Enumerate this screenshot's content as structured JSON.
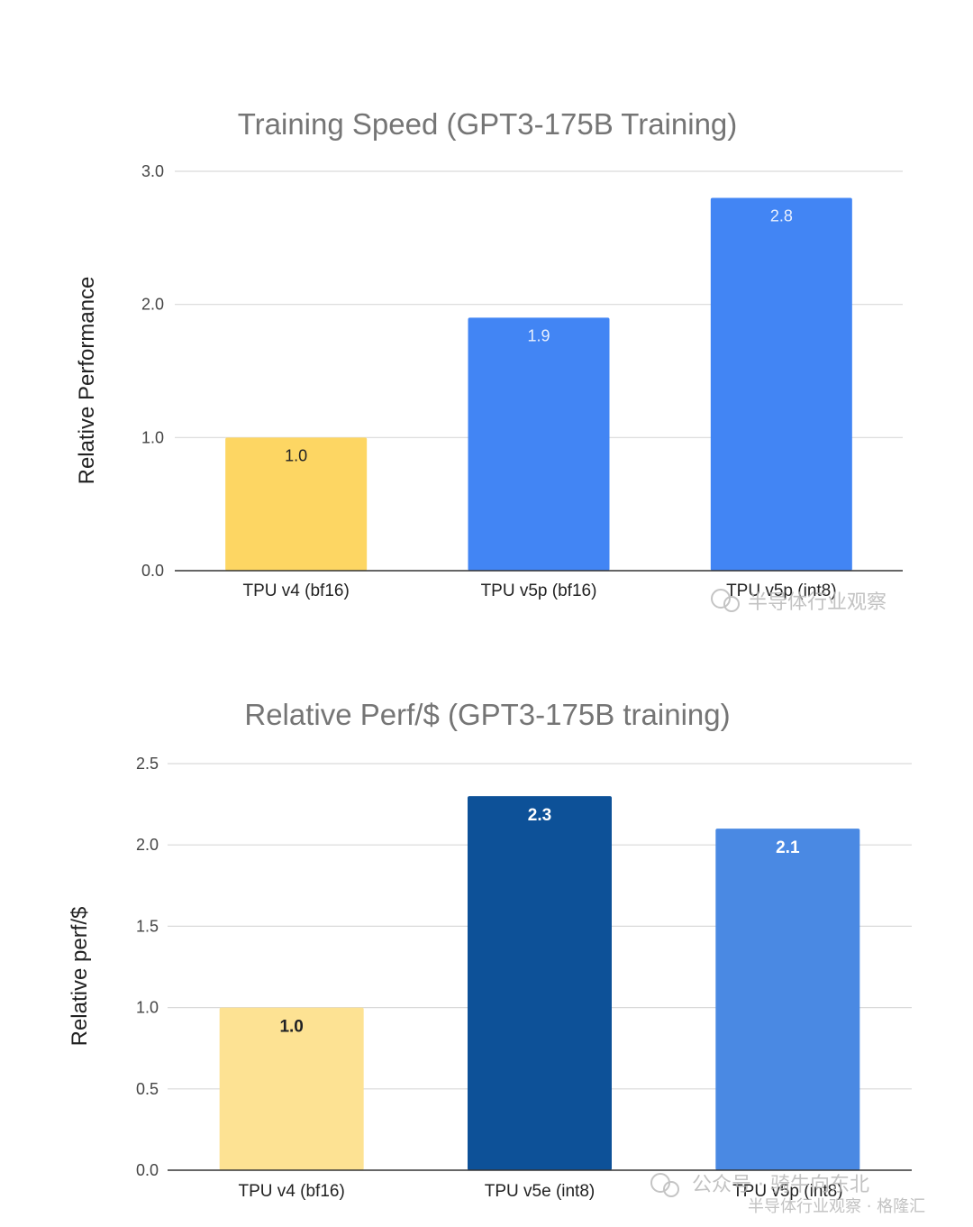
{
  "chart_data": [
    {
      "type": "bar",
      "title": "Training Speed (GPT3-175B Training)",
      "ylabel": "Relative Performance",
      "xlabel": "",
      "categories": [
        "TPU v4 (bf16)",
        "TPU v5p (bf16)",
        "TPU v5p (int8)"
      ],
      "values": [
        1.0,
        1.9,
        2.8
      ],
      "value_labels": [
        "1.0",
        "1.9",
        "2.8"
      ],
      "colors": [
        "#fdd663",
        "#4285f4",
        "#4285f4"
      ],
      "label_colors": [
        "#202124",
        "#e8f0fe",
        "#e8f0fe"
      ],
      "label_bold": false,
      "ylim": [
        0,
        3
      ],
      "yticks": [
        0,
        1,
        2,
        3
      ],
      "ytick_labels": [
        "0.0",
        "1.0",
        "2.0",
        "3.0"
      ],
      "grid": true,
      "legend": "none"
    },
    {
      "type": "bar",
      "title": "Relative Perf/$ (GPT3-175B training)",
      "ylabel": "Relative perf/$",
      "xlabel": "",
      "categories": [
        "TPU v4 (bf16)",
        "TPU v5e (int8)",
        "TPU v5p (int8)"
      ],
      "values": [
        1.0,
        2.3,
        2.1
      ],
      "value_labels": [
        "1.0",
        "2.3",
        "2.1"
      ],
      "colors": [
        "#fde293",
        "#0d5198",
        "#4a89e3"
      ],
      "label_colors": [
        "#202124",
        "#ffffff",
        "#ffffff"
      ],
      "label_bold": true,
      "ylim": [
        0,
        2.5
      ],
      "yticks": [
        0,
        0.5,
        1.0,
        1.5,
        2.0,
        2.5
      ],
      "ytick_labels": [
        "0.0",
        "0.5",
        "1.0",
        "1.5",
        "2.0",
        "2.5"
      ],
      "grid": true,
      "legend": "none"
    }
  ],
  "watermarks": {
    "top": "半导体行业观察",
    "bottom_line1": "公众号 · 骑牛向东北",
    "bottom_line2": "半导体行业观察 · 格隆汇"
  }
}
